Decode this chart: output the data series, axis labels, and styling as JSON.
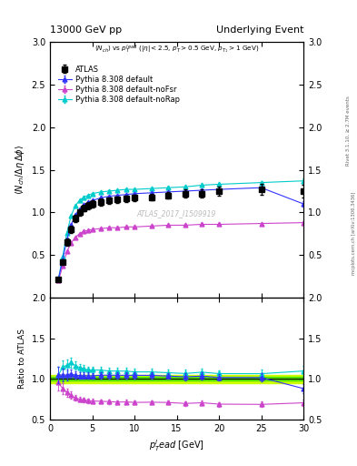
{
  "title_left": "13000 GeV pp",
  "title_right": "Underlying Event",
  "subtitle": "$\\langle N_{ch}\\rangle$ vs $p_T^{lead}$ ($|\\eta| < 2.5$, $p_T > 0.5$ GeV, $p_{T_1} > 1$ GeV)",
  "ylabel_main": "$\\langle N_{ch}/\\Delta\\eta\\,\\Delta\\phi\\rangle$",
  "ylabel_ratio": "Ratio to ATLAS",
  "xlabel": "$p_T^{l}ead$ [GeV]",
  "watermark": "ATLAS_2017_I1509919",
  "right_label_top": "Rivet 3.1.10, ≥ 2.7M events",
  "right_label_bot": "mcplots.cern.ch [arXiv:1306.3436]",
  "atlas_x": [
    1.0,
    1.5,
    2.0,
    2.5,
    3.0,
    3.5,
    4.0,
    4.5,
    5.0,
    6.0,
    7.0,
    8.0,
    9.0,
    10.0,
    12.0,
    14.0,
    16.0,
    18.0,
    20.0,
    25.0,
    30.0
  ],
  "atlas_y": [
    0.21,
    0.42,
    0.65,
    0.8,
    0.93,
    1.0,
    1.05,
    1.08,
    1.1,
    1.12,
    1.14,
    1.15,
    1.16,
    1.17,
    1.18,
    1.2,
    1.22,
    1.22,
    1.25,
    1.27,
    1.25
  ],
  "atlas_ey": [
    0.02,
    0.03,
    0.04,
    0.04,
    0.04,
    0.04,
    0.04,
    0.04,
    0.04,
    0.04,
    0.04,
    0.04,
    0.04,
    0.04,
    0.04,
    0.04,
    0.05,
    0.05,
    0.05,
    0.06,
    0.07
  ],
  "py_default_x": [
    1.0,
    1.5,
    2.0,
    2.5,
    3.0,
    3.5,
    4.0,
    4.5,
    5.0,
    6.0,
    7.0,
    8.0,
    9.0,
    10.0,
    12.0,
    14.0,
    16.0,
    18.0,
    20.0,
    25.0,
    30.0
  ],
  "py_default_y": [
    0.22,
    0.44,
    0.68,
    0.85,
    0.97,
    1.04,
    1.09,
    1.12,
    1.14,
    1.17,
    1.19,
    1.2,
    1.21,
    1.22,
    1.23,
    1.24,
    1.25,
    1.26,
    1.27,
    1.29,
    1.1
  ],
  "py_default_ey": [
    0.005,
    0.005,
    0.005,
    0.005,
    0.005,
    0.005,
    0.005,
    0.005,
    0.005,
    0.005,
    0.005,
    0.005,
    0.005,
    0.005,
    0.008,
    0.008,
    0.01,
    0.01,
    0.01,
    0.015,
    0.03
  ],
  "py_noFsr_x": [
    1.0,
    1.5,
    2.0,
    2.5,
    3.0,
    3.5,
    4.0,
    4.5,
    5.0,
    6.0,
    7.0,
    8.0,
    9.0,
    10.0,
    12.0,
    14.0,
    16.0,
    18.0,
    20.0,
    25.0,
    30.0
  ],
  "py_noFsr_y": [
    0.2,
    0.37,
    0.54,
    0.64,
    0.71,
    0.75,
    0.78,
    0.79,
    0.8,
    0.81,
    0.82,
    0.82,
    0.83,
    0.83,
    0.84,
    0.85,
    0.85,
    0.86,
    0.86,
    0.87,
    0.88
  ],
  "py_noFsr_ey": [
    0.005,
    0.005,
    0.005,
    0.005,
    0.005,
    0.005,
    0.005,
    0.005,
    0.005,
    0.005,
    0.005,
    0.005,
    0.005,
    0.005,
    0.005,
    0.005,
    0.005,
    0.008,
    0.008,
    0.01,
    0.015
  ],
  "py_noRap_x": [
    1.0,
    1.5,
    2.0,
    2.5,
    3.0,
    3.5,
    4.0,
    4.5,
    5.0,
    6.0,
    7.0,
    8.0,
    9.0,
    10.0,
    12.0,
    14.0,
    16.0,
    18.0,
    20.0,
    25.0,
    30.0
  ],
  "py_noRap_y": [
    0.22,
    0.48,
    0.76,
    0.96,
    1.08,
    1.14,
    1.18,
    1.2,
    1.22,
    1.24,
    1.25,
    1.26,
    1.27,
    1.27,
    1.28,
    1.29,
    1.3,
    1.32,
    1.33,
    1.35,
    1.37
  ],
  "py_noRap_ey": [
    0.005,
    0.005,
    0.005,
    0.005,
    0.005,
    0.005,
    0.005,
    0.005,
    0.005,
    0.005,
    0.005,
    0.005,
    0.005,
    0.005,
    0.008,
    0.008,
    0.01,
    0.01,
    0.01,
    0.015,
    0.025
  ],
  "color_atlas": "#000000",
  "color_default": "#3333ff",
  "color_noFsr": "#cc44cc",
  "color_noRap": "#00cccc",
  "color_band": "#ccff00",
  "color_band_green": "#00cc00",
  "ylim_main": [
    0.0,
    3.0
  ],
  "ylim_ratio": [
    0.5,
    2.0
  ],
  "xlim": [
    0,
    30
  ],
  "yticks_main": [
    0.5,
    1.0,
    1.5,
    2.0,
    2.5,
    3.0
  ],
  "yticks_ratio": [
    0.5,
    1.0,
    1.5,
    2.0
  ]
}
